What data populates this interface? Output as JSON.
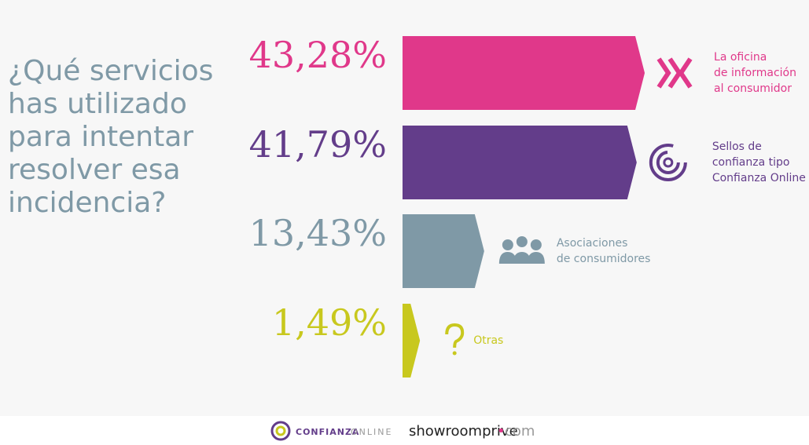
{
  "chart_data": {
    "type": "arrow-bar",
    "title": "¿Qué servicios\nhas utilizado\npara intentar\nresolver esa\nincidencia?",
    "categories": [
      "La oficina\nde información\nal consumidor",
      "Sellos de\nconfianza tipo\nConfianza Online",
      "Asociaciones\nde consumidores",
      "Otras"
    ],
    "values": [
      43.28,
      41.79,
      13.43,
      1.49
    ],
    "value_labels": [
      "43,28%",
      "41,79%",
      "13,43%",
      "1,49%"
    ],
    "colors": [
      "#e0388a",
      "#633d8a",
      "#7f99a6",
      "#c8c81e"
    ]
  },
  "footer": {
    "logo1": [
      "CONFIANZA",
      "ONLINE"
    ],
    "logo2": [
      "showroomprive",
      "•",
      "com"
    ]
  }
}
